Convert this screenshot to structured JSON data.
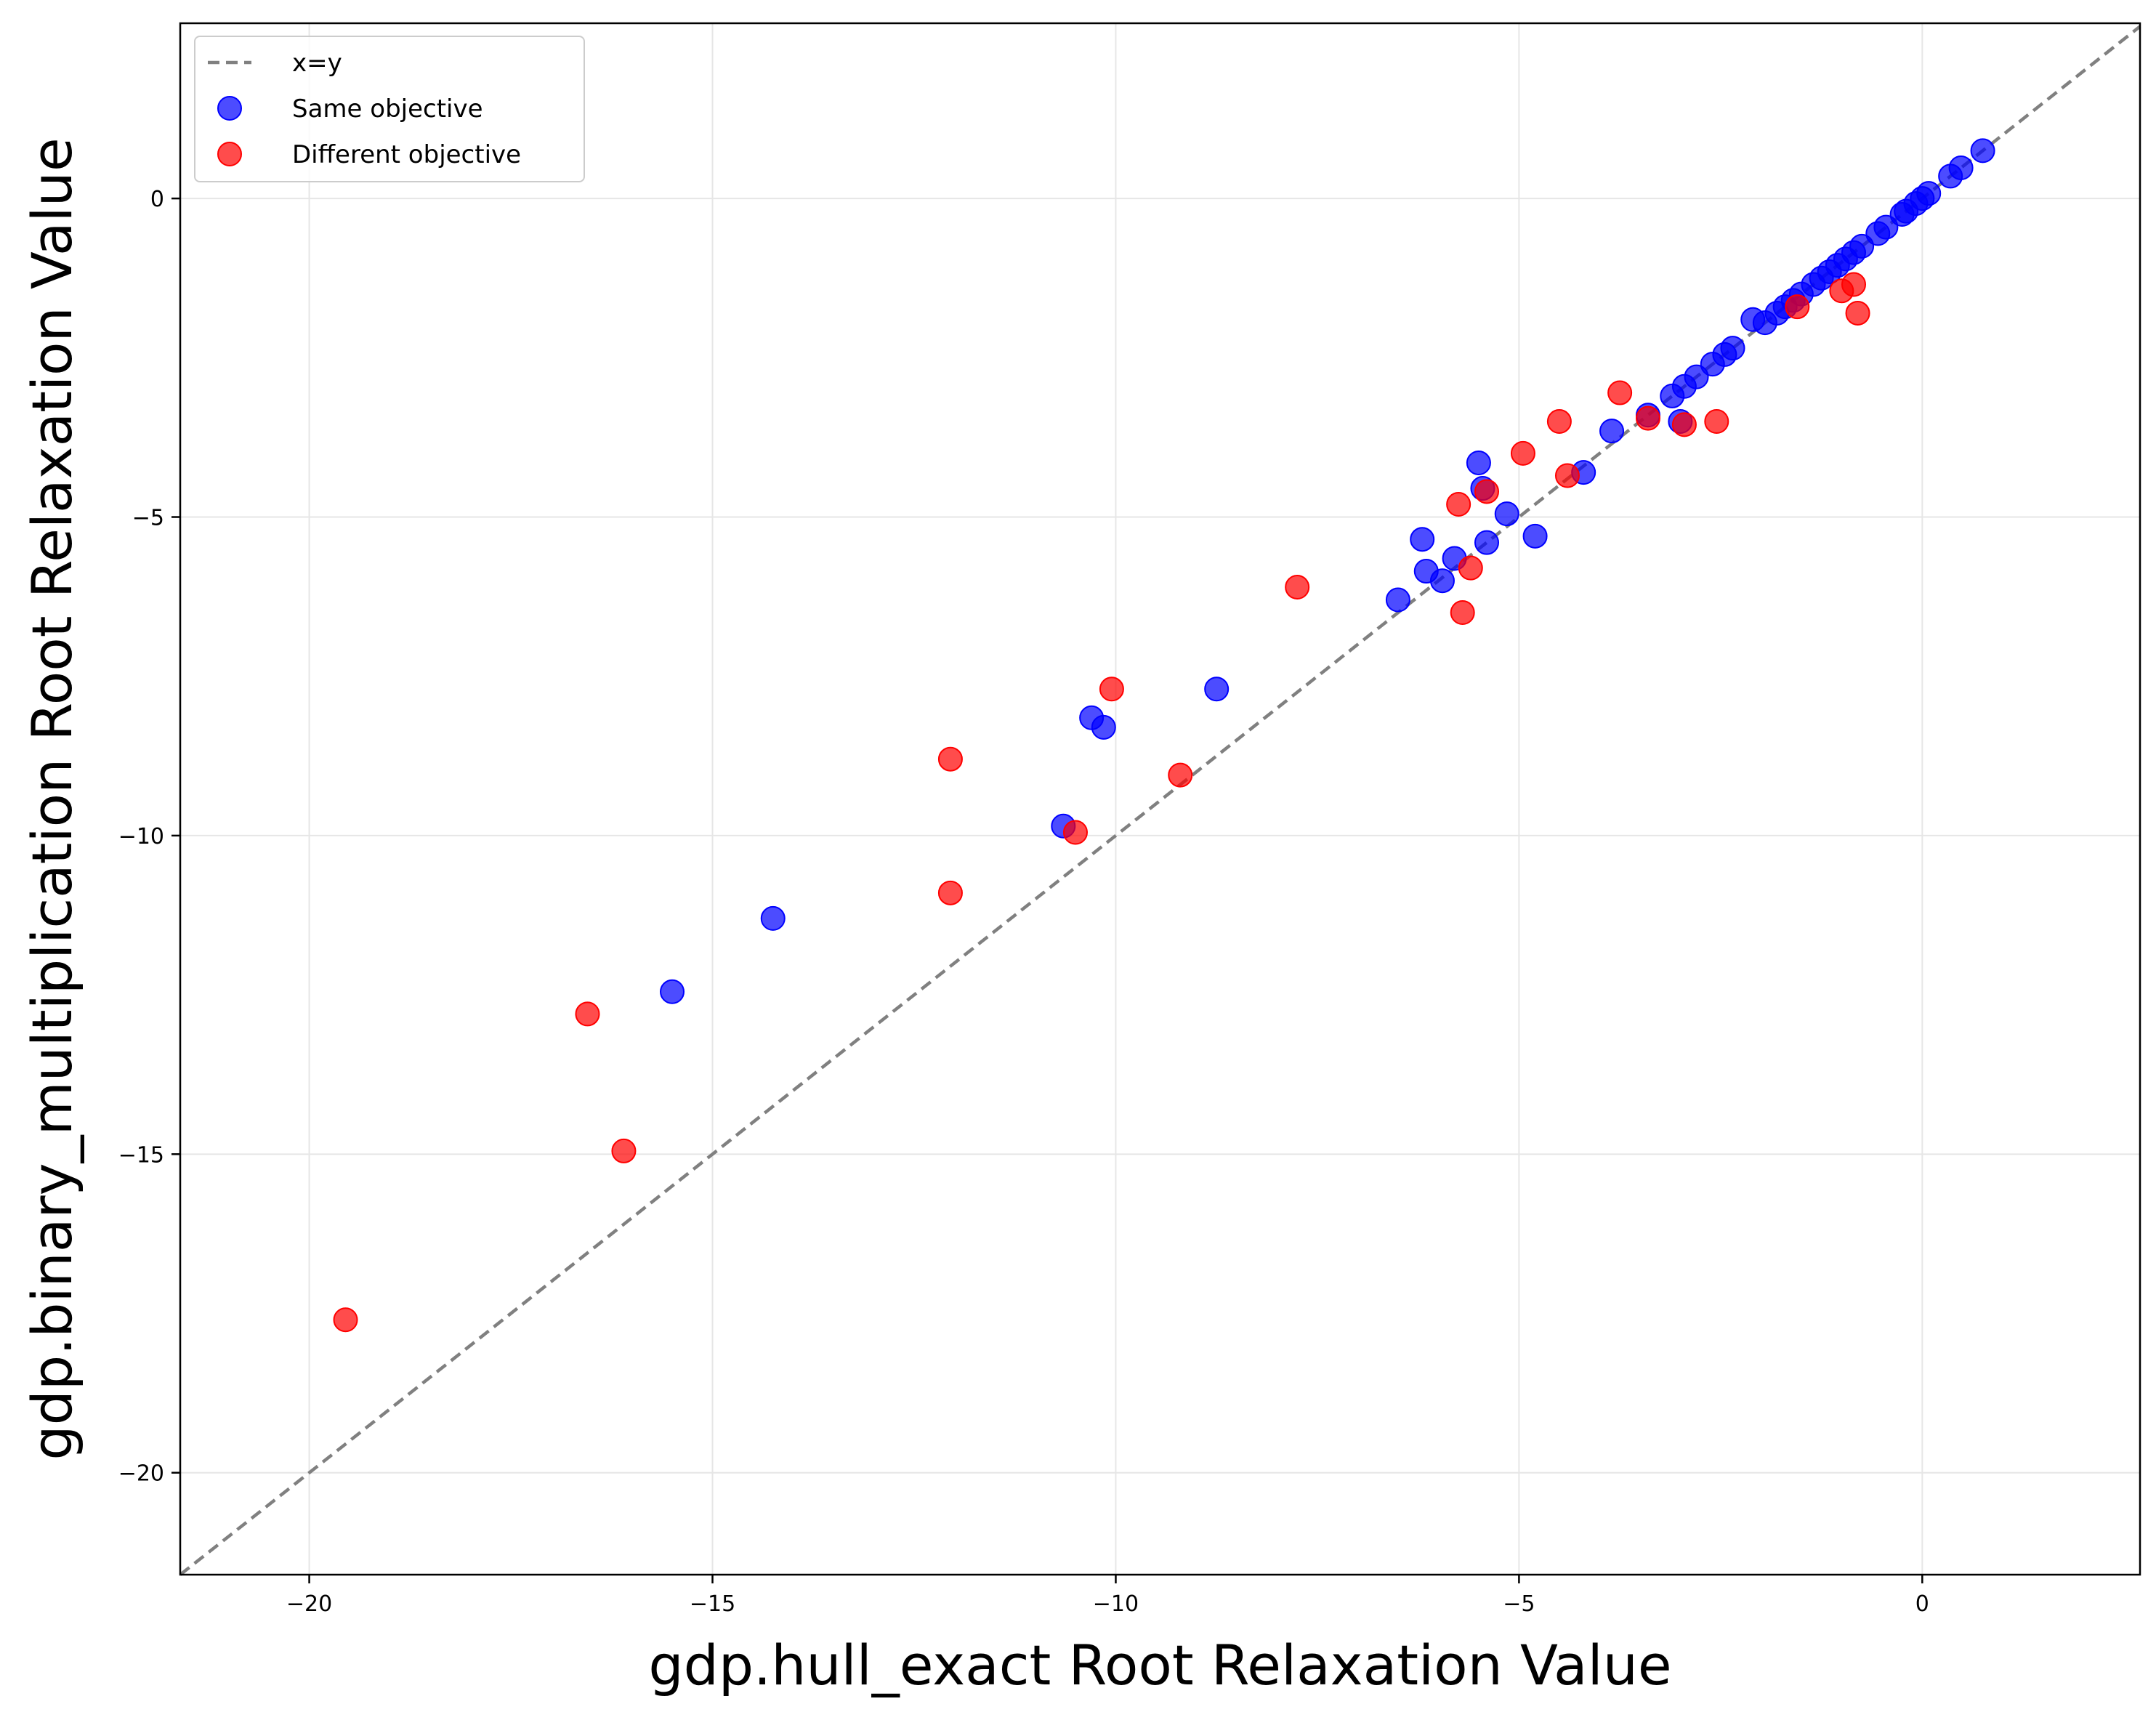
{
  "chart_data": {
    "type": "scatter",
    "xlabel": "gdp.hull_exact Root Relaxation Value",
    "ylabel": "gdp.binary_multiplication Root Relaxation Value",
    "xlim": [
      -21.6,
      2.7
    ],
    "ylim": [
      -21.6,
      2.75
    ],
    "x_ticks": [
      -20,
      -15,
      -10,
      -5,
      0
    ],
    "x_tick_labels": [
      "−20",
      "−15",
      "−10",
      "−5",
      "0"
    ],
    "y_ticks": [
      -20,
      -15,
      -10,
      -5,
      0
    ],
    "y_tick_labels": [
      "−20",
      "−15",
      "−10",
      "−5",
      "0"
    ],
    "grid": true,
    "legend_position": "top-left",
    "reference_line": {
      "label": "x=y",
      "color": "#808080",
      "style": "dashed"
    },
    "series": [
      {
        "name": "Same objective",
        "color": "#0000ff",
        "points": [
          [
            0.75,
            0.75
          ],
          [
            0.48,
            0.48
          ],
          [
            0.35,
            0.35
          ],
          [
            0.08,
            0.08
          ],
          [
            0.0,
            0.0
          ],
          [
            -0.08,
            -0.08
          ],
          [
            -0.2,
            -0.2
          ],
          [
            -0.25,
            -0.25
          ],
          [
            -0.45,
            -0.45
          ],
          [
            -0.55,
            -0.55
          ],
          [
            -0.75,
            -0.75
          ],
          [
            -0.85,
            -0.85
          ],
          [
            -0.95,
            -0.95
          ],
          [
            -1.05,
            -1.05
          ],
          [
            -1.15,
            -1.15
          ],
          [
            -1.25,
            -1.25
          ],
          [
            -1.35,
            -1.35
          ],
          [
            -1.5,
            -1.5
          ],
          [
            -1.6,
            -1.6
          ],
          [
            -1.7,
            -1.7
          ],
          [
            -1.8,
            -1.8
          ],
          [
            -1.95,
            -1.95
          ],
          [
            -2.1,
            -1.9
          ],
          [
            -2.35,
            -2.35
          ],
          [
            -2.45,
            -2.45
          ],
          [
            -2.6,
            -2.6
          ],
          [
            -2.8,
            -2.8
          ],
          [
            -2.95,
            -2.95
          ],
          [
            -3.1,
            -3.1
          ],
          [
            -3.0,
            -3.5
          ],
          [
            -3.4,
            -3.4
          ],
          [
            -3.85,
            -3.65
          ],
          [
            -4.2,
            -4.3
          ],
          [
            -4.8,
            -5.3
          ],
          [
            -5.15,
            -4.95
          ],
          [
            -5.4,
            -5.4
          ],
          [
            -5.45,
            -4.55
          ],
          [
            -5.5,
            -4.15
          ],
          [
            -5.8,
            -5.65
          ],
          [
            -5.95,
            -6.0
          ],
          [
            -6.15,
            -5.85
          ],
          [
            -6.2,
            -5.35
          ],
          [
            -6.5,
            -6.3
          ],
          [
            -8.75,
            -7.7
          ],
          [
            -10.15,
            -8.3
          ],
          [
            -10.3,
            -8.15
          ],
          [
            -10.65,
            -9.85
          ],
          [
            -14.25,
            -11.3
          ],
          [
            -15.5,
            -12.45
          ]
        ]
      },
      {
        "name": "Different objective",
        "color": "#ff0000",
        "points": [
          [
            -0.8,
            -1.8
          ],
          [
            -0.85,
            -1.35
          ],
          [
            -1.0,
            -1.45
          ],
          [
            -1.55,
            -1.7
          ],
          [
            -2.55,
            -3.5
          ],
          [
            -2.95,
            -3.55
          ],
          [
            -3.4,
            -3.45
          ],
          [
            -3.75,
            -3.05
          ],
          [
            -4.4,
            -4.35
          ],
          [
            -4.5,
            -3.5
          ],
          [
            -4.95,
            -4.0
          ],
          [
            -5.4,
            -4.6
          ],
          [
            -5.6,
            -5.8
          ],
          [
            -5.7,
            -6.5
          ],
          [
            -5.75,
            -4.8
          ],
          [
            -7.75,
            -6.1
          ],
          [
            -9.2,
            -9.05
          ],
          [
            -10.05,
            -7.7
          ],
          [
            -10.5,
            -9.95
          ],
          [
            -12.05,
            -8.8
          ],
          [
            -12.05,
            -10.9
          ],
          [
            -16.1,
            -14.95
          ],
          [
            -16.55,
            -12.8
          ],
          [
            -19.55,
            -17.6
          ]
        ]
      }
    ]
  }
}
